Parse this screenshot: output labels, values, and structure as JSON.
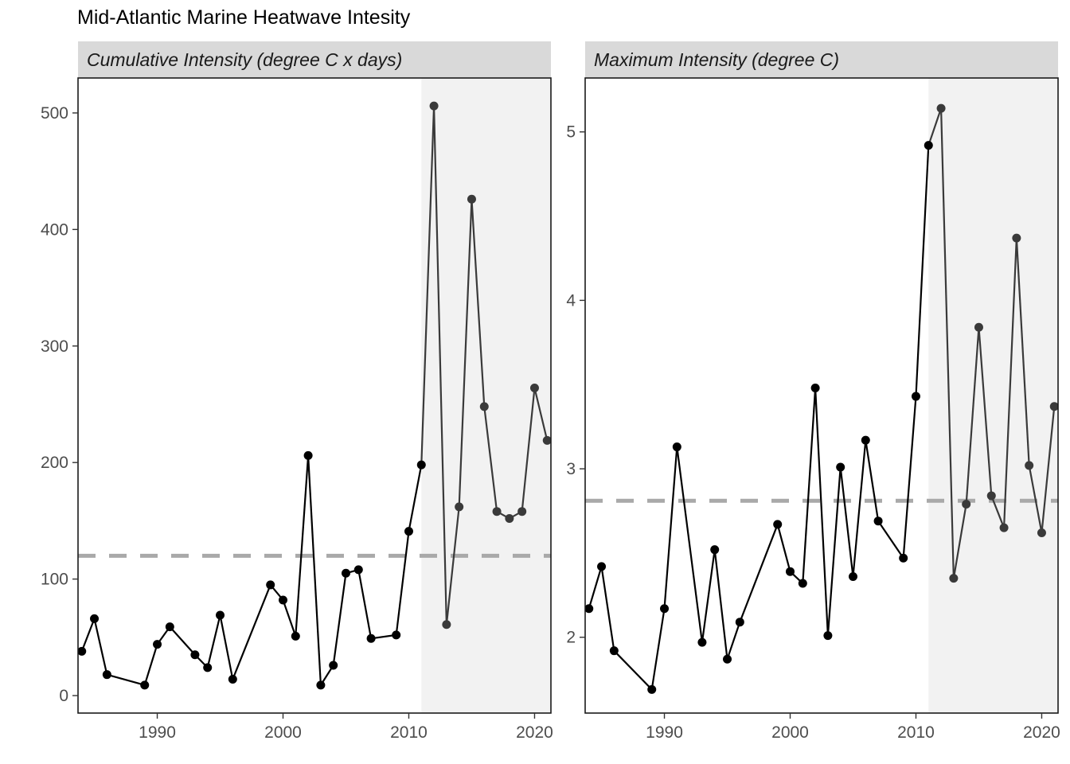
{
  "title": "Mid-Atlantic Marine Heatwave Intesity",
  "chart_data": [
    {
      "type": "line",
      "panel_label": "Cumulative Intensity (degree C x days)",
      "xlim": [
        1983.7,
        2021.3
      ],
      "ylim": [
        -15,
        530
      ],
      "x_ticks": [
        1990,
        2000,
        2010,
        2020
      ],
      "y_ticks": [
        0,
        100,
        200,
        300,
        400,
        500
      ],
      "shade_from": 2011,
      "reference_line": 120,
      "x": [
        1984,
        1985,
        1986,
        1989,
        1990,
        1991,
        1993,
        1994,
        1995,
        1996,
        1999,
        2000,
        2001,
        2002,
        2003,
        2004,
        2005,
        2006,
        2007,
        2009,
        2010,
        2011,
        2012,
        2013,
        2014,
        2015,
        2016,
        2017,
        2018,
        2019,
        2020,
        2021
      ],
      "y": [
        38,
        66,
        18,
        9,
        44,
        59,
        35,
        24,
        69,
        14,
        95,
        82,
        51,
        206,
        9,
        26,
        105,
        108,
        49,
        52,
        141,
        198,
        506,
        61,
        162,
        426,
        248,
        158,
        152,
        158,
        264,
        219
      ],
      "colors": {
        "early": "#000000",
        "recent": "#3a3a3a",
        "shade": "#f2f2f2",
        "reference": "#a9a9a9",
        "strip": "#d9d9d9"
      }
    },
    {
      "type": "line",
      "panel_label": "Maximum Intensity (degree C)",
      "xlim": [
        1983.7,
        2021.3
      ],
      "ylim": [
        1.55,
        5.32
      ],
      "x_ticks": [
        1990,
        2000,
        2010,
        2020
      ],
      "y_ticks": [
        2,
        3,
        4,
        5
      ],
      "shade_from": 2011,
      "reference_line": 2.81,
      "x": [
        1984,
        1985,
        1986,
        1989,
        1990,
        1991,
        1993,
        1994,
        1995,
        1996,
        1999,
        2000,
        2001,
        2002,
        2003,
        2004,
        2005,
        2006,
        2007,
        2009,
        2010,
        2011,
        2012,
        2013,
        2014,
        2015,
        2016,
        2017,
        2018,
        2019,
        2020,
        2021
      ],
      "y": [
        2.17,
        2.42,
        1.92,
        1.69,
        2.17,
        3.13,
        1.97,
        2.52,
        1.87,
        2.09,
        2.67,
        2.39,
        2.32,
        3.48,
        2.01,
        3.01,
        2.36,
        3.17,
        2.69,
        2.47,
        3.43,
        4.92,
        5.14,
        2.35,
        2.79,
        3.84,
        2.84,
        2.65,
        4.37,
        3.02,
        2.62,
        3.37
      ],
      "colors": {
        "early": "#000000",
        "recent": "#3a3a3a",
        "shade": "#f2f2f2",
        "reference": "#a9a9a9",
        "strip": "#d9d9d9"
      }
    }
  ]
}
